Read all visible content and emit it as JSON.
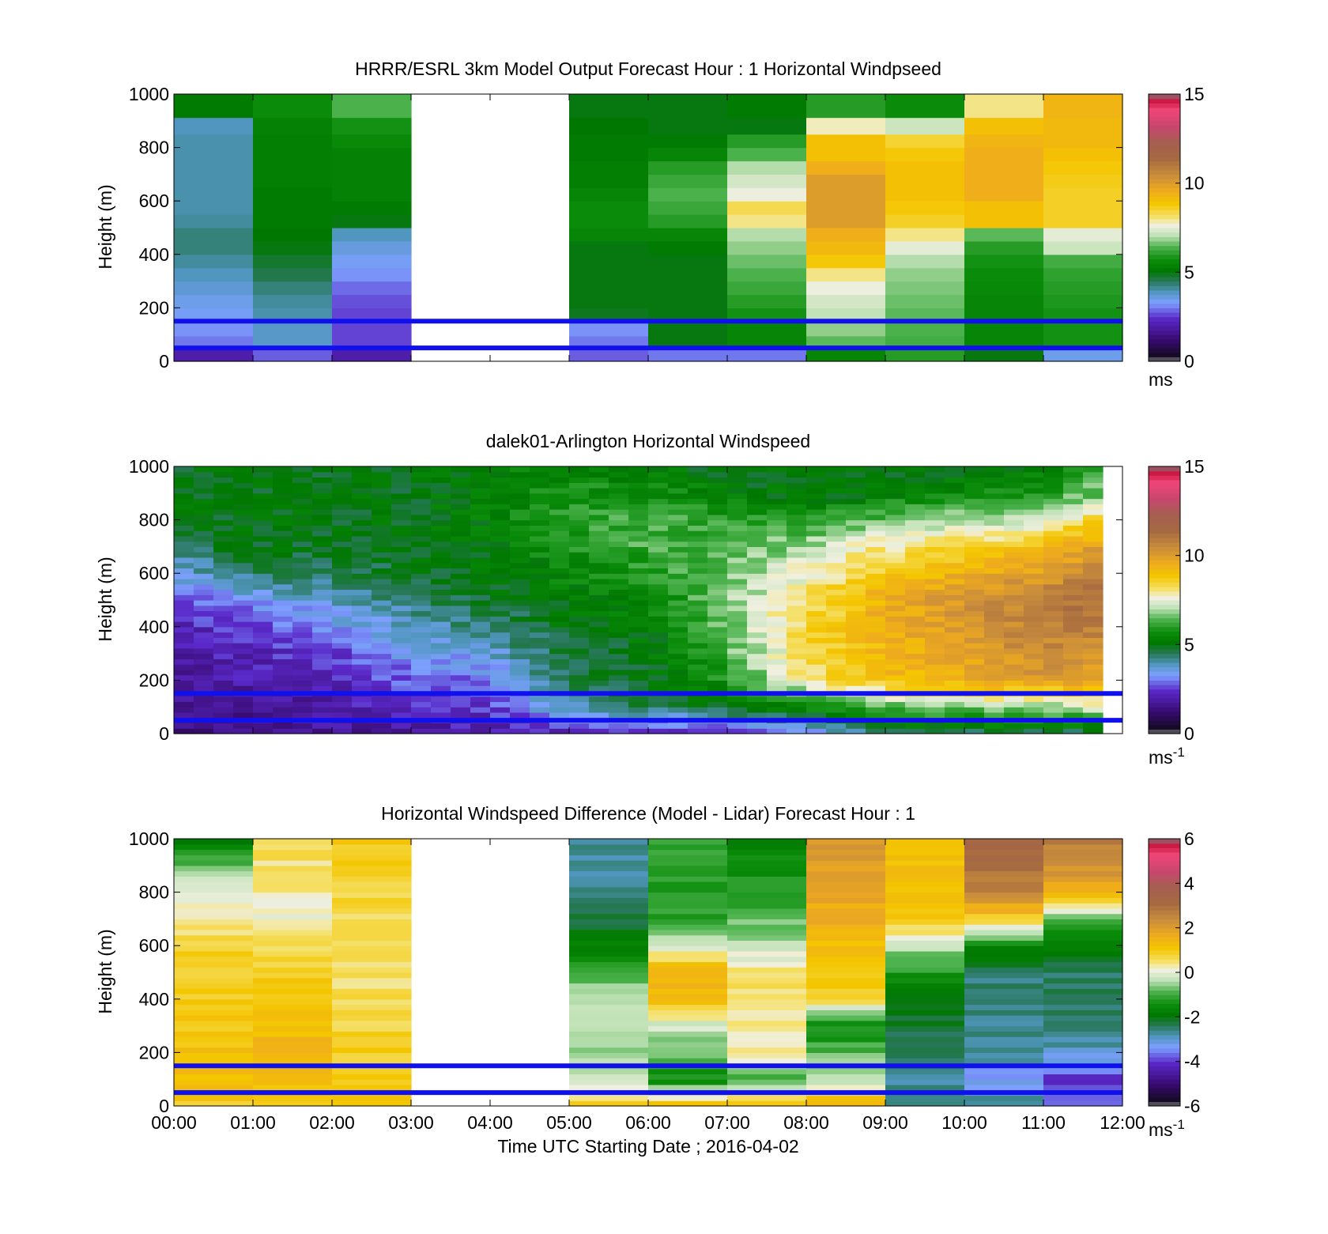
{
  "figure": {
    "xlabel": "Time UTC  Starting Date ; 2016-04-02",
    "xticks": [
      "00:00",
      "01:00",
      "02:00",
      "03:00",
      "04:00",
      "05:00",
      "06:00",
      "07:00",
      "08:00",
      "09:00",
      "10:00",
      "11:00",
      "12:00"
    ]
  },
  "chart_data": [
    {
      "type": "heatmap",
      "title": "HRRR/ESRL 3km Model Output   Forecast Hour : 1 Horizontal Windpseed",
      "ylabel": "Height (m)",
      "xlabel": "",
      "xlim": [
        0,
        12
      ],
      "ylim": [
        0,
        1000
      ],
      "yticks": [
        "0",
        "200",
        "400",
        "600",
        "800",
        "1000"
      ],
      "ref_lines_height_m": [
        150,
        50
      ],
      "ref_line_color": "#1010ee",
      "grid": false,
      "colorbar": {
        "ticks": [
          "0",
          "5",
          "10",
          "15"
        ],
        "range": [
          0,
          15
        ],
        "unit": "ms",
        "unit_sup": ""
      },
      "columns_start_hour": [
        0,
        1,
        2,
        5,
        6,
        7,
        8,
        9,
        10,
        11
      ],
      "column_width_hour": 1,
      "levels_m": [
        25,
        65,
        125,
        175,
        225,
        275,
        325,
        375,
        425,
        475,
        525,
        575,
        625,
        675,
        725,
        775,
        825,
        875,
        950
      ],
      "values": [
        [
          2.0,
          3.0,
          3.2,
          3.4,
          3.5,
          3.7,
          3.9,
          4.1,
          4.3,
          4.3,
          4.1,
          4.0,
          4.0,
          4.0,
          4.0,
          4.0,
          4.0,
          3.9,
          5.2
        ],
        [
          2.8,
          3.8,
          3.8,
          4.0,
          4.1,
          4.3,
          4.6,
          4.8,
          5.0,
          5.1,
          5.2,
          5.2,
          5.2,
          5.3,
          5.3,
          5.3,
          5.3,
          5.4,
          5.7
        ],
        [
          2.0,
          2.6,
          2.6,
          2.6,
          2.7,
          2.9,
          3.2,
          3.4,
          3.6,
          3.9,
          5.0,
          5.2,
          5.4,
          5.4,
          5.4,
          5.4,
          5.6,
          5.8,
          6.4
        ],
        [
          2.8,
          3.0,
          3.2,
          4.9,
          5.0,
          5.0,
          5.0,
          5.0,
          5.0,
          5.5,
          5.7,
          5.7,
          5.5,
          5.3,
          5.3,
          5.2,
          5.2,
          5.1,
          5.0
        ],
        [
          3.0,
          5.0,
          5.0,
          5.0,
          5.0,
          5.0,
          5.0,
          5.0,
          5.2,
          5.5,
          6.0,
          6.2,
          6.4,
          6.2,
          6.0,
          5.5,
          5.2,
          5.0,
          5.0
        ],
        [
          3.0,
          5.5,
          5.5,
          5.8,
          6.0,
          6.2,
          6.4,
          6.6,
          6.8,
          7.0,
          8.0,
          8.3,
          7.6,
          7.3,
          7.0,
          6.4,
          6.0,
          5.0,
          5.2
        ],
        [
          5.5,
          6.5,
          6.8,
          7.1,
          7.3,
          7.6,
          8.0,
          8.8,
          9.2,
          9.5,
          10.0,
          10.0,
          10.0,
          10.0,
          9.5,
          9.0,
          9.0,
          7.8,
          6.0
        ],
        [
          6.0,
          6.3,
          6.4,
          6.5,
          6.6,
          6.7,
          6.8,
          7.0,
          7.5,
          8.0,
          8.6,
          8.8,
          9.0,
          9.0,
          9.0,
          8.8,
          8.5,
          7.2,
          5.7
        ],
        [
          5.0,
          5.5,
          5.5,
          5.5,
          5.5,
          5.6,
          5.7,
          5.8,
          6.0,
          6.5,
          9.0,
          9.0,
          9.5,
          9.5,
          9.5,
          9.5,
          9.3,
          9.0,
          8.0
        ],
        [
          3.5,
          5.8,
          5.8,
          5.8,
          5.9,
          6.0,
          6.1,
          6.3,
          7.2,
          7.5,
          8.6,
          8.6,
          8.6,
          8.7,
          8.8,
          9.0,
          9.2,
          9.2,
          9.3
        ]
      ]
    },
    {
      "type": "heatmap",
      "title": "dalek01-Arlington  Horizontal Windspeed",
      "ylabel": "Height (m)",
      "xlabel": "",
      "xlim": [
        0,
        12
      ],
      "ylim": [
        0,
        1000
      ],
      "yticks": [
        "0",
        "200",
        "400",
        "600",
        "800",
        "1000"
      ],
      "ref_lines_height_m": [
        150,
        50
      ],
      "ref_line_color": "#1010ee",
      "grid": false,
      "colorbar": {
        "ticks": [
          "0",
          "5",
          "10",
          "15"
        ],
        "range": [
          0,
          15
        ],
        "unit": "ms",
        "unit_sup": "-1"
      },
      "column_width_hour": 0.25,
      "data_end_hour": 11.75,
      "level_step_m": 20,
      "profile_anchor_hours": [
        0,
        1,
        2,
        3,
        4,
        5,
        6,
        7,
        8,
        9,
        10,
        11,
        11.75
      ],
      "profile_anchor_heights_m": [
        0,
        100,
        200,
        300,
        400,
        500,
        600,
        700,
        800,
        900,
        1000
      ],
      "profiles": [
        [
          1.5,
          1.5,
          1.8,
          2.0,
          2.2,
          2.8,
          3.5,
          4.5,
          5.0,
          5.0,
          5.0
        ],
        [
          1.6,
          1.8,
          2.0,
          2.2,
          2.5,
          3.2,
          4.5,
          5.0,
          5.0,
          5.0,
          5.0
        ],
        [
          1.7,
          1.9,
          2.2,
          2.6,
          3.2,
          3.8,
          4.5,
          4.9,
          5.0,
          5.0,
          5.0
        ],
        [
          1.8,
          2.4,
          2.8,
          3.3,
          3.8,
          4.3,
          4.8,
          5.0,
          5.0,
          5.0,
          5.0
        ],
        [
          2.0,
          2.5,
          3.0,
          3.6,
          4.3,
          4.8,
          5.0,
          5.2,
          5.3,
          5.4,
          5.3
        ],
        [
          2.0,
          4.0,
          4.6,
          4.8,
          5.0,
          5.2,
          5.5,
          5.8,
          6.0,
          5.8,
          5.5
        ],
        [
          2.0,
          4.5,
          5.0,
          5.0,
          5.2,
          5.5,
          5.9,
          6.3,
          6.4,
          5.8,
          5.2
        ],
        [
          2.2,
          5.0,
          5.8,
          6.3,
          6.6,
          6.8,
          6.6,
          6.3,
          6.0,
          5.3,
          5.0
        ],
        [
          3.0,
          5.5,
          8.0,
          8.3,
          8.5,
          8.0,
          7.8,
          7.0,
          6.0,
          5.0,
          5.0
        ],
        [
          4.5,
          6.5,
          9.0,
          9.2,
          9.4,
          9.5,
          8.8,
          8.0,
          6.6,
          5.2,
          5.0
        ],
        [
          4.5,
          6.8,
          9.5,
          9.8,
          10.2,
          10.2,
          9.5,
          8.5,
          7.0,
          5.5,
          5.0
        ],
        [
          4.5,
          6.8,
          10.0,
          10.5,
          10.8,
          10.9,
          10.0,
          9.0,
          7.2,
          6.0,
          5.2
        ],
        [
          4.5,
          7.5,
          9.6,
          10.2,
          10.8,
          11.2,
          11.0,
          10.0,
          8.8,
          6.6,
          6.4
        ]
      ]
    },
    {
      "type": "heatmap",
      "title": "Horizontal Windspeed Difference (Model - Lidar) Forecast Hour : 1",
      "ylabel": "Height (m)",
      "xlabel": "Time UTC  Starting Date ; 2016-04-02",
      "xlim": [
        0,
        12
      ],
      "ylim": [
        0,
        1000
      ],
      "yticks": [
        "0",
        "200",
        "400",
        "600",
        "800",
        "1000"
      ],
      "ref_lines_height_m": [
        150,
        50
      ],
      "ref_line_color": "#1010ee",
      "grid": false,
      "colorbar": {
        "ticks": [
          "-6",
          "-4",
          "-2",
          "0",
          "2",
          "4",
          "6"
        ],
        "range": [
          -6,
          6
        ],
        "unit": "ms",
        "unit_sup": "-1"
      },
      "columns_start_hour": [
        0,
        1,
        2,
        5,
        6,
        7,
        8,
        9,
        10,
        11
      ],
      "column_width_hour": 1,
      "level_step_m": 20,
      "profile_anchor_heights_m": [
        0,
        100,
        200,
        300,
        400,
        500,
        600,
        700,
        800,
        900,
        1000
      ],
      "profiles": [
        [
          1.0,
          1.2,
          1.2,
          1.1,
          1.0,
          0.9,
          0.8,
          0.4,
          0.0,
          -0.8,
          -1.8
        ],
        [
          1.0,
          1.3,
          1.4,
          1.3,
          1.1,
          0.9,
          0.6,
          0.2,
          0.3,
          0.5,
          0.6
        ],
        [
          0.9,
          1.0,
          0.9,
          0.8,
          0.6,
          0.5,
          0.5,
          0.6,
          0.8,
          0.9,
          1.0
        ],
        [
          1.0,
          -0.3,
          -0.6,
          -0.5,
          -0.3,
          -1.0,
          -1.8,
          -2.2,
          -2.5,
          -2.7,
          -2.8
        ],
        [
          1.2,
          -1.5,
          -0.8,
          -0.2,
          1.3,
          1.5,
          -0.2,
          -1.1,
          -1.2,
          -1.1,
          -1.0
        ],
        [
          1.2,
          -0.9,
          0.3,
          0.4,
          0.5,
          0.5,
          -0.3,
          -0.8,
          -1.2,
          -1.5,
          -1.6
        ],
        [
          1.5,
          -0.3,
          -0.8,
          -1.5,
          0.8,
          1.0,
          1.2,
          1.6,
          1.8,
          2.0,
          2.1
        ],
        [
          -2.5,
          -2.8,
          -2.5,
          -2.3,
          -1.8,
          -1.3,
          -0.3,
          1.0,
          1.1,
          1.2,
          1.2
        ],
        [
          -2.5,
          -3.5,
          -2.6,
          -2.7,
          -2.6,
          -2.6,
          -1.5,
          0.9,
          2.6,
          3.0,
          3.2
        ],
        [
          -3.5,
          -4.0,
          -3.0,
          -2.6,
          -2.4,
          -2.5,
          -1.8,
          -0.7,
          1.5,
          2.3,
          2.8
        ]
      ]
    }
  ]
}
